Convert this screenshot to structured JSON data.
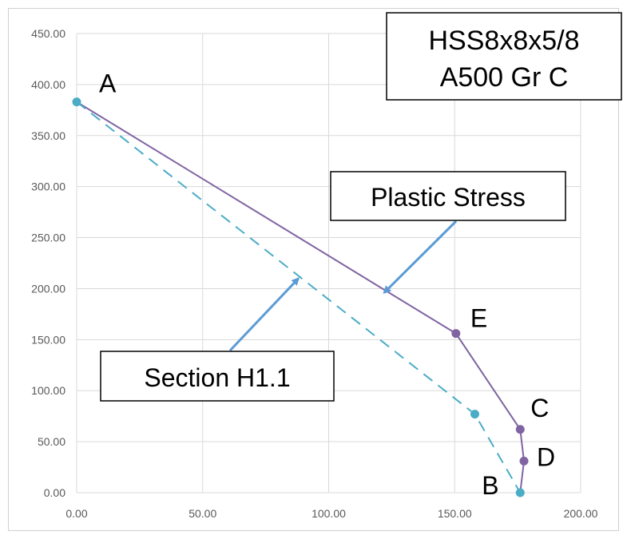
{
  "chart_data": {
    "type": "line",
    "xlim": [
      0,
      200
    ],
    "ylim": [
      0,
      450
    ],
    "x_ticks": [
      "0.00",
      "50.00",
      "100.00",
      "150.00",
      "200.00"
    ],
    "y_ticks": [
      "0.00",
      "50.00",
      "100.00",
      "150.00",
      "200.00",
      "250.00",
      "300.00",
      "350.00",
      "400.00",
      "450.00"
    ],
    "grid": true,
    "series": [
      {
        "style": "solid",
        "color": "#8064a2",
        "points": [
          {
            "x": 0,
            "y": 383,
            "label": "A"
          },
          {
            "x": 150.5,
            "y": 156,
            "label": "E"
          },
          {
            "x": 176,
            "y": 62,
            "label": "C"
          },
          {
            "x": 177.5,
            "y": 31,
            "label": "D"
          },
          {
            "x": 176,
            "y": 0,
            "label": ""
          }
        ]
      },
      {
        "style": "dashed",
        "color": "#4bacc6",
        "points": [
          {
            "x": 0,
            "y": 383,
            "label": ""
          },
          {
            "x": 158,
            "y": 77,
            "label": ""
          },
          {
            "x": 176,
            "y": 0,
            "label": "B"
          }
        ]
      }
    ],
    "title_box": {
      "line1": "HSS8x8x5/8",
      "line2": "A500 Gr C"
    },
    "annotations": [
      {
        "text": "Plastic Stress",
        "arrow_to": {
          "x": 122,
          "y": 196
        }
      },
      {
        "text": "Section H1.1",
        "arrow_to": {
          "x": 88,
          "y": 210
        }
      }
    ]
  }
}
